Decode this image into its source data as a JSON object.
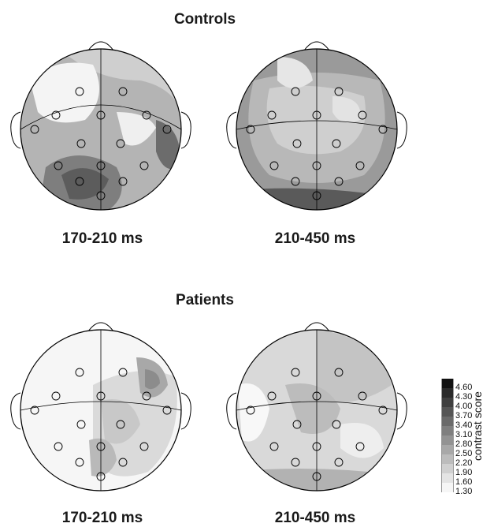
{
  "groups": [
    {
      "title": "Controls",
      "maps": [
        {
          "label": "170-210 ms",
          "max_color": "#3a3a3a"
        },
        {
          "label": "210-450 ms",
          "max_color": "#4a4a4a"
        }
      ]
    },
    {
      "title": "Patients",
      "maps": [
        {
          "label": "170-210 ms",
          "max_color": "#555555"
        },
        {
          "label": "210-450 ms",
          "max_color": "#8a8a8a"
        }
      ]
    }
  ],
  "colorbar": {
    "title": "contrast score",
    "ticks": [
      "4.60",
      "4.30",
      "4.00",
      "3.70",
      "3.40",
      "3.10",
      "2.80",
      "2.50",
      "2.20",
      "1.90",
      "1.60",
      "1.30"
    ],
    "colors": [
      "#111111",
      "#2a2a2a",
      "#3f3f3f",
      "#555555",
      "#6a6a6a",
      "#7f7f7f",
      "#939393",
      "#a8a8a8",
      "#bcbcbc",
      "#d0d0d0",
      "#e4e4e4",
      "#f6f6f6"
    ]
  }
}
